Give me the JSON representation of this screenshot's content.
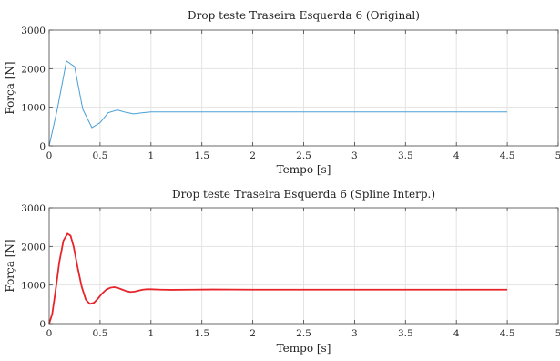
{
  "chart_data": [
    {
      "type": "line",
      "title": "Drop teste Traseira Esquerda 6 (Original)",
      "xlabel": "Tempo [s]",
      "ylabel": "Força [N]",
      "xlim": [
        0,
        5
      ],
      "ylim": [
        0,
        3000
      ],
      "xticks": [
        0,
        0.5,
        1,
        1.5,
        2,
        2.5,
        3,
        3.5,
        4,
        4.5,
        5
      ],
      "xtick_labels": [
        "0",
        "0.5",
        "1",
        "1.5",
        "2",
        "2.5",
        "3",
        "3.5",
        "4",
        "4.5",
        "5"
      ],
      "yticks": [
        0,
        1000,
        2000,
        3000
      ],
      "ytick_labels": [
        "0",
        "1000",
        "2000",
        "3000"
      ],
      "grid": true,
      "legend": "none",
      "series": [
        {
          "color": "#4a9fd6",
          "x": [
            0,
            0.08,
            0.17,
            0.25,
            0.33,
            0.42,
            0.5,
            0.58,
            0.67,
            0.75,
            0.83,
            0.92,
            1.0,
            1.25,
            1.5,
            2.0,
            2.5,
            3.0,
            3.5,
            4.0,
            4.5
          ],
          "y": [
            0,
            950,
            2200,
            2050,
            950,
            470,
            600,
            860,
            930,
            870,
            830,
            860,
            880,
            880,
            880,
            880,
            880,
            880,
            880,
            880,
            880
          ]
        }
      ]
    },
    {
      "type": "line",
      "title": "Drop teste Traseira Esquerda 6 (Spline Interp.)",
      "xlabel": "Tempo [s]",
      "ylabel": "Força [N]",
      "xlim": [
        0,
        5
      ],
      "ylim": [
        0,
        3000
      ],
      "xticks": [
        0,
        0.5,
        1,
        1.5,
        2,
        2.5,
        3,
        3.5,
        4,
        4.5,
        5
      ],
      "xtick_labels": [
        "0",
        "0.5",
        "1",
        "1.5",
        "2",
        "2.5",
        "3",
        "3.5",
        "4",
        "4.5",
        "5"
      ],
      "yticks": [
        0,
        1000,
        2000,
        3000
      ],
      "ytick_labels": [
        "0",
        "1000",
        "2000",
        "3000"
      ],
      "grid": true,
      "legend": "none",
      "series": [
        {
          "color": "#e8242b",
          "x": [
            0,
            0.03,
            0.06,
            0.1,
            0.14,
            0.18,
            0.21,
            0.24,
            0.28,
            0.32,
            0.36,
            0.4,
            0.44,
            0.48,
            0.52,
            0.56,
            0.6,
            0.64,
            0.68,
            0.72,
            0.76,
            0.8,
            0.84,
            0.88,
            0.92,
            0.96,
            1.0,
            1.1,
            1.2,
            1.4,
            1.6,
            1.8,
            2.0,
            2.5,
            3.0,
            3.5,
            4.0,
            4.5
          ],
          "y": [
            0,
            250,
            800,
            1600,
            2150,
            2330,
            2280,
            2000,
            1450,
            950,
            620,
            510,
            540,
            650,
            780,
            880,
            930,
            945,
            920,
            880,
            840,
            820,
            830,
            855,
            880,
            890,
            890,
            880,
            875,
            880,
            885,
            882,
            880,
            880,
            880,
            880,
            880,
            880
          ]
        }
      ]
    }
  ]
}
